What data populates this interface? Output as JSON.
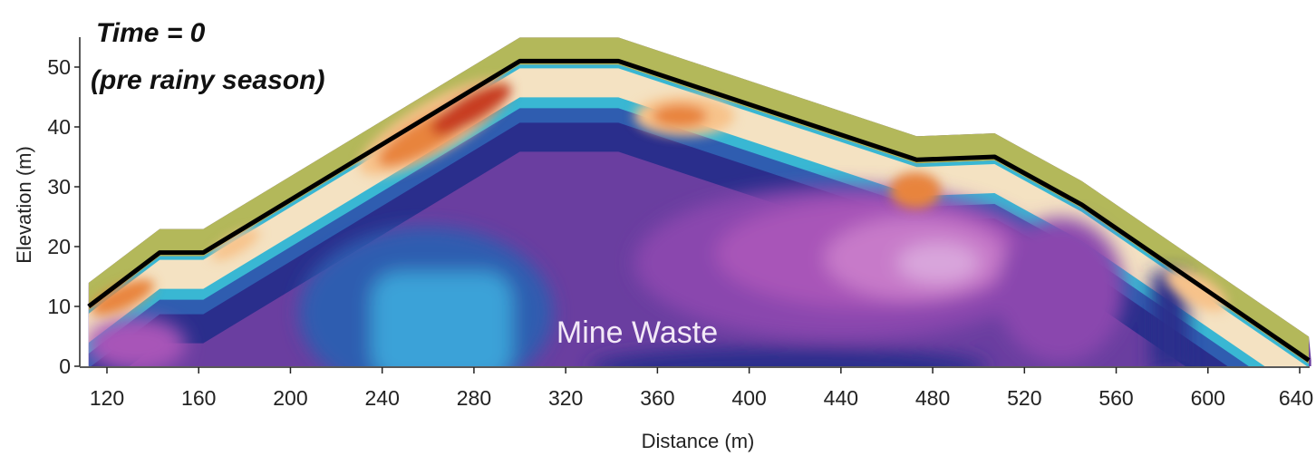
{
  "chart_data": {
    "type": "heatmap",
    "xlabel": "Distance (m)",
    "ylabel": "Elevation (m)",
    "xlim": [
      110,
      645
    ],
    "ylim": [
      0,
      55
    ],
    "x_ticks": [
      120,
      160,
      200,
      240,
      280,
      320,
      360,
      400,
      440,
      480,
      520,
      560,
      600,
      640
    ],
    "y_ticks": [
      0,
      10,
      20,
      30,
      40,
      50
    ],
    "title_lines": [
      "Time = 0",
      "(pre rainy season)"
    ],
    "annotation": "Mine Waste",
    "surface_profile": {
      "x": [
        112,
        143,
        162,
        300,
        343,
        473,
        507,
        545,
        644
      ],
      "y": [
        10,
        19,
        19,
        51,
        51,
        34.5,
        35,
        27,
        1
      ]
    },
    "colors": {
      "olive": "#b3b85a",
      "olive_dark": "#8e9a3c",
      "cyan": "#39b7d3",
      "teal": "#2f9fb8",
      "cream": "#f4e2c2",
      "peach": "#f7c28a",
      "orange": "#e8843c",
      "red": "#c83c22",
      "blue_light": "#3aa2d8",
      "blue_mid": "#2f5db0",
      "navy": "#2a2e8c",
      "purple": "#6a3ea0",
      "violet": "#8a46ae",
      "magenta": "#a855b8",
      "pink": "#c77ac9",
      "pink_light": "#d9a6dc",
      "line": "#000000"
    }
  }
}
